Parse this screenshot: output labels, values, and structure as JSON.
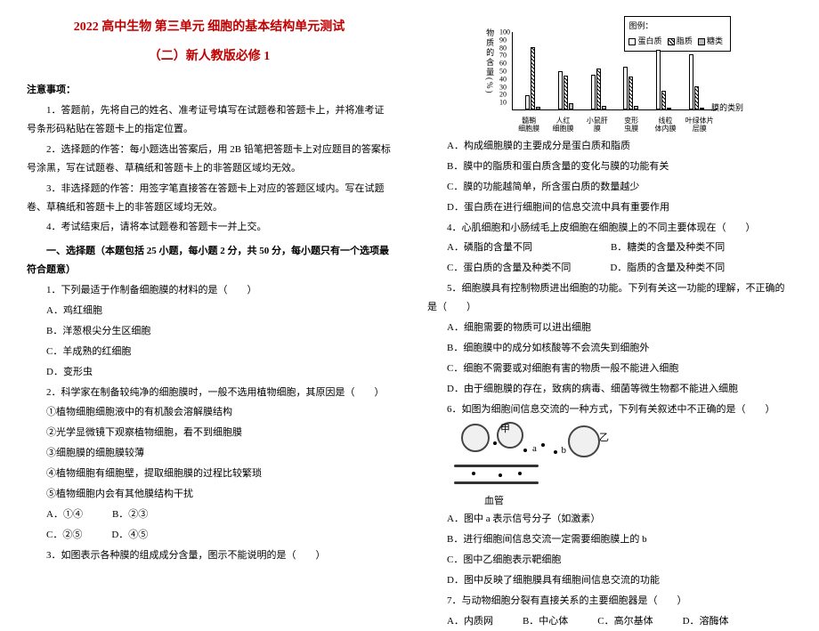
{
  "title1": "2022 高中生物 第三单元 细胞的基本结构单元测试",
  "title2": "（二）新人教版必修 1",
  "notice_heading": "注意事项：",
  "notices": [
    "1．答题前，先将自己的姓名、准考证号填写在试题卷和答题卡上，并将准考证号条形码粘贴在答题卡上的指定位置。",
    "2．选择题的作答：每小题选出答案后，用 2B 铅笔把答题卡上对应题目的答案标号涂黑，写在试题卷、草稿纸和答题卡上的非答题区域均无效。",
    "3．非选择题的作答：用签字笔直接答在答题卡上对应的答题区域内。写在试题卷、草稿纸和答题卡上的非答题区域均无效。",
    "4．考试结束后，请将本试题卷和答题卡一并上交。"
  ],
  "section1_heading": "一、选择题（本题包括 25 小题，每小题 2 分，共 50 分，每小题只有一个选项最符合题意）",
  "q1": "1．下列最适于作制备细胞膜的材料的是（　　）",
  "q1_opts": [
    "A．鸡红细胞",
    "B．洋葱根尖分生区细胞",
    "C．羊成熟的红细胞",
    "D．变形虫"
  ],
  "q2": "2．科学家在制备较纯净的细胞膜时，一般不选用植物细胞，其原因是（　　）",
  "q2_items": [
    "①植物细胞细胞液中的有机酸会溶解膜结构",
    "②光学显微镜下观察植物细胞，看不到细胞膜",
    "③细胞膜的细胞膜较薄",
    "④植物细胞有细胞壁，提取细胞膜的过程比较繁琐",
    "⑤植物细胞内会有其他膜结构干扰"
  ],
  "q2_opts": [
    "A．①④",
    "B．②③",
    "C．②⑤",
    "D．④⑤"
  ],
  "q3": "3．如图表示各种膜的组成成分含量，图示不能说明的是（　　）",
  "chart": {
    "ylabel": "物质的含量(%)",
    "yticks": [
      10,
      20,
      30,
      40,
      50,
      60,
      70,
      80,
      90,
      100
    ],
    "legend": [
      "蛋白质",
      "脂质",
      "糖类"
    ],
    "categories": [
      "髓鞘\n细胞膜",
      "人红\n细胞膜",
      "小鼠肝\n膜",
      "变形\n虫膜",
      "线粒\n体内膜",
      "叶绿体片层膜"
    ],
    "series_colors": [
      "#ffffff",
      "stripe",
      "#bbbbbb"
    ],
    "values": [
      [
        18,
        79,
        3
      ],
      [
        49,
        43,
        8
      ],
      [
        44,
        52,
        4
      ],
      [
        54,
        42,
        4
      ],
      [
        76,
        24,
        0
      ],
      [
        70,
        30,
        0
      ]
    ],
    "xtitle": "膜的类别"
  },
  "q3_opts": [
    "A．构成细胞膜的主要成分是蛋白质和脂质",
    "B．膜中的脂质和蛋白质含量的变化与膜的功能有关",
    "C．膜的功能越简单，所含蛋白质的数量越少",
    "D．蛋白质在进行细胞间的信息交流中具有重要作用"
  ],
  "q4": "4．心肌细胞和小肠绒毛上皮细胞在细胞膜上的不同主要体现在（　　）",
  "q4_opts": [
    "A．磷脂的含量不同　　　　　　　　B．糖类的含量及种类不同",
    "C．蛋白质的含量及种类不同　　　　D．脂质的含量及种类不同"
  ],
  "q5": "5．细胞膜具有控制物质进出细胞的功能。下列有关这一功能的理解，不正确的是（　　）",
  "q5_opts": [
    "A．细胞需要的物质可以进出细胞",
    "B．细胞膜中的成分如核酸等不会流失到细胞外",
    "C．细胞不需要或对细胞有害的物质一般不能进入细胞",
    "D．由于细胞膜的存在，致病的病毒、细菌等微生物都不能进入细胞"
  ],
  "q6": "6．如图为细胞间信息交流的一种方式，下列有关叙述中不正确的是（　　）",
  "diagram": {
    "labels": {
      "jia": "甲",
      "yi": "乙",
      "a": "a",
      "b": "b",
      "xueguan": "血管"
    }
  },
  "q6_opts": [
    "A．图中 a 表示信号分子（如激素）",
    "B．进行细胞间信息交流一定需要细胞膜上的 b",
    "C．图中乙细胞表示靶细胞",
    "D．图中反映了细胞膜具有细胞间信息交流的功能"
  ],
  "q7": "7．与动物细胞分裂有直接关系的主要细胞器是（　　）",
  "q7_opts": "A．内质网　　　B．中心体　　　C．高尔基体　　　D．溶酶体"
}
